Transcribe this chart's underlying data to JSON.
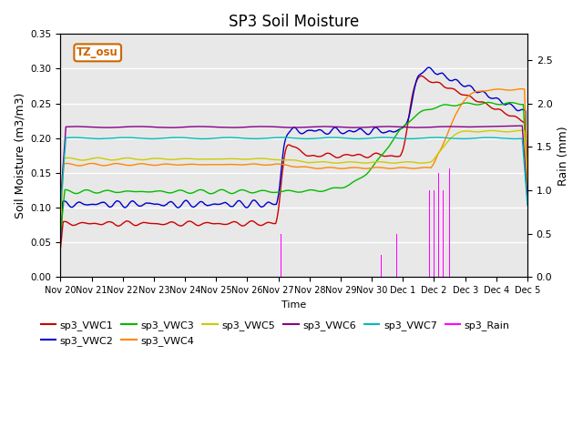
{
  "title": "SP3 Soil Moisture",
  "xlabel": "Time",
  "ylabel_left": "Soil Moisture (m3/m3)",
  "ylabel_right": "Rain (mm)",
  "ylim_left": [
    0.0,
    0.35
  ],
  "ylim_right": [
    0.0,
    2.8
  ],
  "background_color": "#e8e8e8",
  "annotation_text": "TZ_osu",
  "annotation_color": "#cc6600",
  "colors": {
    "VWC1": "#cc0000",
    "VWC2": "#0000cc",
    "VWC3": "#00bb00",
    "VWC4": "#ff8800",
    "VWC5": "#cccc00",
    "VWC6": "#880088",
    "VWC7": "#00bbbb",
    "Rain": "#ff00ff"
  },
  "tick_labels": [
    "Nov 20",
    "Nov 21",
    "Nov 22",
    "Nov 23",
    "Nov 24",
    "Nov 25",
    "Nov 26",
    "Nov 27",
    "Nov 28",
    "Nov 29",
    "Nov 30",
    "Dec 1",
    "Dec 2",
    "Dec 3",
    "Dec 4",
    "Dec 5"
  ],
  "legend_row1": [
    {
      "label": "sp3_VWC1",
      "color": "#cc0000"
    },
    {
      "label": "sp3_VWC2",
      "color": "#0000cc"
    },
    {
      "label": "sp3_VWC3",
      "color": "#00bb00"
    },
    {
      "label": "sp3_VWC4",
      "color": "#ff8800"
    },
    {
      "label": "sp3_VWC5",
      "color": "#cccc00"
    },
    {
      "label": "sp3_VWC6",
      "color": "#880088"
    }
  ],
  "legend_row2": [
    {
      "label": "sp3_VWC7",
      "color": "#00bbbb"
    },
    {
      "label": "sp3_Rain",
      "color": "#ff00ff"
    }
  ]
}
